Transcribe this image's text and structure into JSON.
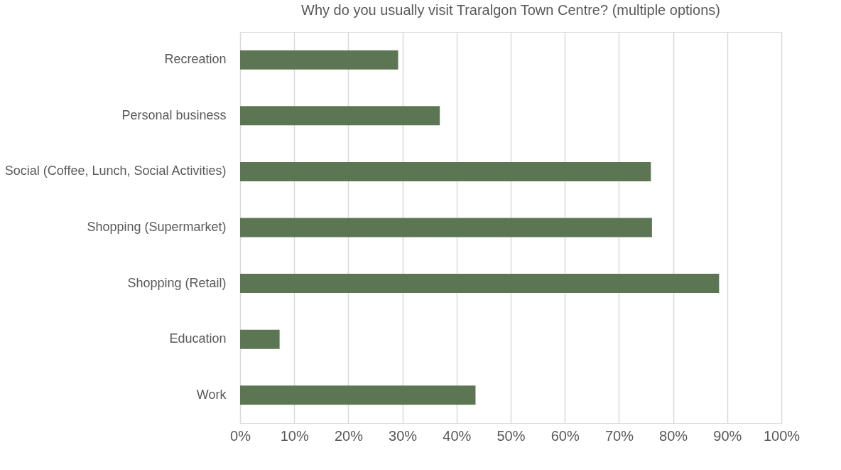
{
  "chart_data": {
    "type": "bar",
    "orientation": "horizontal",
    "title": "Why do you usually visit Traralgon Town Centre? (multiple options)",
    "categories": [
      "Recreation",
      "Personal business",
      "Social (Coffee, Lunch, Social Activities)",
      "Shopping (Supermarket)",
      "Shopping (Retail)",
      "Education",
      "Work"
    ],
    "values": [
      29.2,
      36.9,
      75.9,
      76.1,
      88.5,
      7.3,
      43.5
    ],
    "color": "#5c7653",
    "xlim": [
      0,
      100
    ],
    "xticks": [
      {
        "value": 0,
        "label": "0%"
      },
      {
        "value": 10,
        "label": "10%"
      },
      {
        "value": 20,
        "label": "20%"
      },
      {
        "value": 30,
        "label": "30%"
      },
      {
        "value": 40,
        "label": "40%"
      },
      {
        "value": 50,
        "label": "50%"
      },
      {
        "value": 60,
        "label": "60%"
      },
      {
        "value": 70,
        "label": "70%"
      },
      {
        "value": 80,
        "label": "80%"
      },
      {
        "value": 90,
        "label": "90%"
      },
      {
        "value": 100,
        "label": "100%"
      }
    ],
    "grid": "x"
  }
}
